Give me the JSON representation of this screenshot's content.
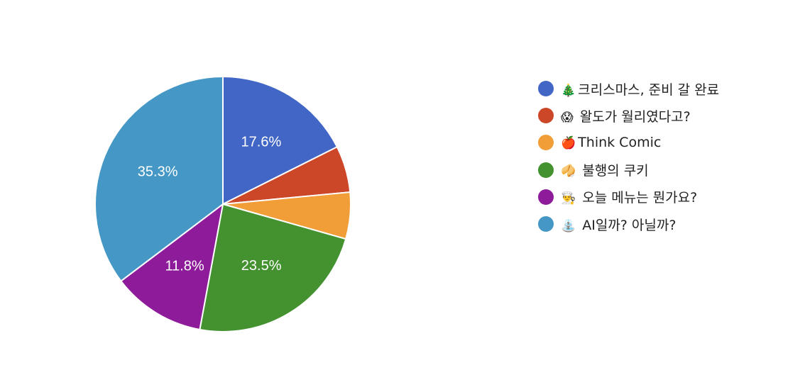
{
  "chart_data": {
    "type": "pie",
    "start_angle_deg": 90,
    "direction": "clockwise",
    "slices": [
      {
        "label": "크리스마스, 준비 갈 완료",
        "emoji": "🎄",
        "value": 17.6,
        "color": "#4266c6",
        "show_pct": true
      },
      {
        "label": "왈도가 월리였다고?",
        "emoji": "😱",
        "value": 5.9,
        "color": "#cc4628",
        "show_pct": false
      },
      {
        "label": "Think Comic",
        "emoji": "🍎",
        "value": 5.9,
        "color": "#f19d38",
        "show_pct": false
      },
      {
        "label": "불행의 쿠키",
        "emoji": "🥠",
        "value": 23.5,
        "color": "#43922f",
        "show_pct": true
      },
      {
        "label": "오늘 메뉴는 뭔가요?",
        "emoji": "👨‍🍳",
        "value": 11.8,
        "color": "#8d1b9a",
        "show_pct": true
      },
      {
        "label": "AI일까? 아닐까?",
        "emoji": "⛲",
        "value": 35.3,
        "color": "#4598c6",
        "show_pct": true
      }
    ],
    "legend_position": "right"
  }
}
